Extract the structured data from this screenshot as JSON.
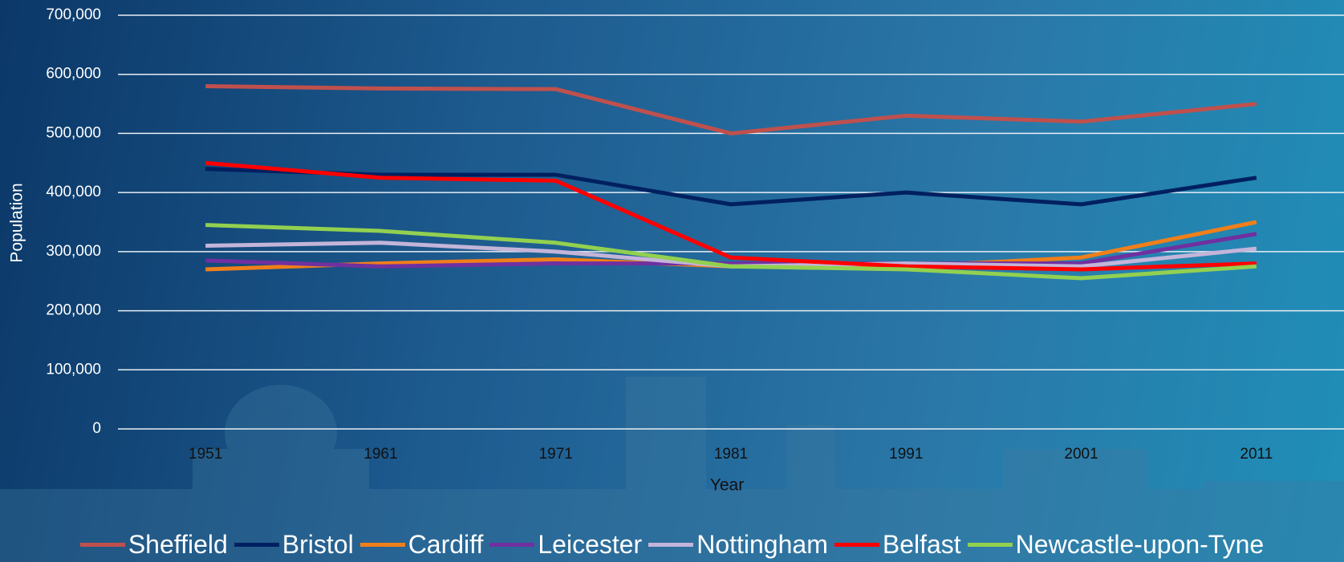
{
  "chart_data": {
    "type": "line",
    "x_label": "Year",
    "y_label": "Population",
    "categories": [
      "1951",
      "1961",
      "1971",
      "1981",
      "1991",
      "2001",
      "2011"
    ],
    "ylim": [
      0,
      700000
    ],
    "yticks": [
      0,
      {
        "value": 100000,
        "label": "100,000"
      },
      {
        "value": 200000,
        "label": "200,000"
      },
      {
        "value": 300000,
        "label": "300,000"
      },
      {
        "value": 400000,
        "label": "400,000"
      },
      {
        "value": 500000,
        "label": "500,000"
      },
      {
        "value": 600000,
        "label": "600,000"
      },
      {
        "value": 700000,
        "label": "700,000"
      }
    ],
    "grid": true,
    "series": [
      {
        "name": "Sheffield",
        "color": "#c0504d",
        "values": [
          580000,
          576000,
          575000,
          500000,
          530000,
          520000,
          550000
        ]
      },
      {
        "name": "Bristol",
        "color": "#002060",
        "values": [
          440000,
          430000,
          430000,
          380000,
          400000,
          380000,
          425000
        ]
      },
      {
        "name": "Cardiff",
        "color": "#f07f1a",
        "values": [
          270000,
          280000,
          287000,
          275000,
          275000,
          290000,
          350000
        ]
      },
      {
        "name": "Leicester",
        "color": "#7030a0",
        "values": [
          285000,
          275000,
          280000,
          280000,
          280000,
          280000,
          330000
        ]
      },
      {
        "name": "Nottingham",
        "color": "#c3b5d9",
        "values": [
          310000,
          315000,
          300000,
          275000,
          280000,
          275000,
          305000
        ]
      },
      {
        "name": "Belfast",
        "color": "#ff0000",
        "values": [
          450000,
          425000,
          420000,
          290000,
          275000,
          270000,
          280000
        ]
      },
      {
        "name": "Newcastle-upon-Tyne",
        "color": "#92d050",
        "values": [
          345000,
          335000,
          315000,
          275000,
          270000,
          255000,
          275000
        ]
      }
    ]
  }
}
